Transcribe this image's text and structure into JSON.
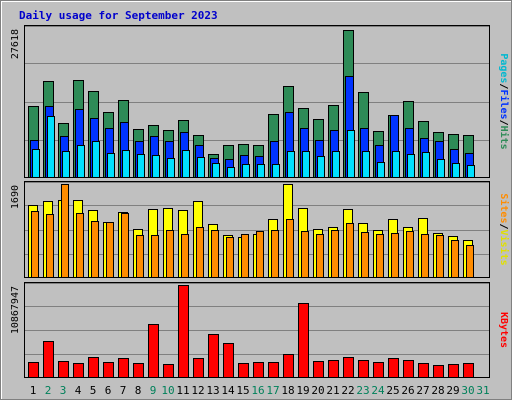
{
  "chart_data": {
    "type": "bar",
    "title": "Daily usage for September 2023",
    "categories": [
      "1",
      "2",
      "3",
      "4",
      "5",
      "6",
      "7",
      "8",
      "9",
      "10",
      "11",
      "12",
      "13",
      "14",
      "15",
      "16",
      "17",
      "18",
      "19",
      "20",
      "21",
      "22",
      "23",
      "24",
      "25",
      "26",
      "27",
      "28",
      "29",
      "30",
      "31"
    ],
    "weekend_days": [
      "2",
      "3",
      "9",
      "10",
      "16",
      "17",
      "23",
      "24",
      "30",
      "31"
    ],
    "panels": [
      {
        "name": "top",
        "y_max_label": "27618",
        "ylim": [
          0,
          27618
        ],
        "side_labels": [
          "Pages",
          "/",
          "Files",
          "/",
          "Hits"
        ],
        "series": [
          {
            "name": "Hits",
            "color": "#2e8b57",
            "values": [
              13100,
              17800,
              10100,
              18000,
              16000,
              12000,
              14300,
              8900,
              9600,
              8700,
              10500,
              7700,
              4300,
              5900,
              6200,
              6000,
              11600,
              16800,
              12800,
              10800,
              13300,
              27200,
              15800,
              8500,
              11500,
              14100,
              10400,
              8300,
              8000,
              7700
            ]
          },
          {
            "name": "Files",
            "color": "#0033ff",
            "values": [
              6900,
              13200,
              7600,
              12600,
              10900,
              9000,
              10200,
              6600,
              7600,
              6700,
              8400,
              6000,
              3600,
              3300,
              4100,
              3900,
              6600,
              12100,
              9100,
              6800,
              8700,
              18700,
              9000,
              6000,
              11500,
              9000,
              7300,
              6700,
              5200,
              4400
            ]
          },
          {
            "name": "Pages",
            "color": "#00e0ff",
            "values": [
              5200,
              11300,
              4800,
              6000,
              6700,
              4500,
              5000,
              4200,
              4000,
              3600,
              5000,
              3700,
              2600,
              1900,
              2400,
              2400,
              2400,
              4900,
              4800,
              3900,
              4800,
              8800,
              4900,
              2800,
              4800,
              4200,
              4600,
              3400,
              2600,
              2300
            ]
          }
        ]
      },
      {
        "name": "middle",
        "y_max_label": "1690",
        "ylim": [
          0,
          1690
        ],
        "side_labels": [
          "Sites",
          "/",
          "Visits"
        ],
        "series": [
          {
            "name": "Visits",
            "color": "#ffff00",
            "values": [
              1310,
              1390,
              1400,
              1400,
              1220,
              1000,
              1190,
              880,
              1240,
              1260,
              1220,
              1380,
              970,
              770,
              730,
              790,
              1060,
              1690,
              1250,
              880,
              900,
              1240,
              980,
              860,
              1060,
              900,
              1080,
              800,
              740,
              680
            ]
          },
          {
            "name": "Sites",
            "color": "#ff8c00",
            "values": [
              1200,
              1140,
              1690,
              1160,
              1010,
              1000,
              1170,
              760,
              770,
              860,
              780,
              900,
              850,
              720,
              790,
              840,
              850,
              1050,
              840,
              790,
              860,
              980,
              820,
              790,
              800,
              830,
              780,
              770,
              680,
              580
            ]
          }
        ]
      },
      {
        "name": "bottom",
        "y_max_label": "10867947",
        "ylim": [
          0,
          10867947
        ],
        "side_labels": [
          "KBytes"
        ],
        "series": [
          {
            "name": "KBytes",
            "color": "#ff0000",
            "values": [
              1800000,
              4200000,
              1900000,
              1600000,
              2400000,
              1800000,
              2300000,
              1700000,
              6300000,
              1500000,
              10867947,
              2200000,
              5100000,
              4000000,
              1700000,
              1800000,
              1800000,
              2700000,
              8700000,
              1900000,
              2000000,
              2400000,
              2000000,
              1800000,
              2300000,
              2000000,
              1700000,
              1400000,
              1500000,
              1600000
            ]
          }
        ]
      }
    ],
    "grid": true,
    "legend": "right-vertical"
  }
}
